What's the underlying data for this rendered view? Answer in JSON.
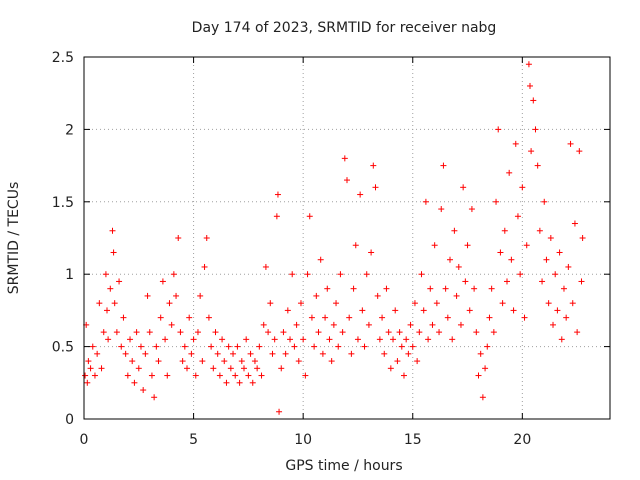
{
  "chart_data": {
    "type": "scatter",
    "title": "Day 174 of 2023, SRMTID for receiver nabg",
    "xlabel": "GPS time / hours",
    "ylabel": "SRMTID / TECUs",
    "xlim": [
      0,
      24
    ],
    "ylim": [
      0,
      2.5
    ],
    "xticks": [
      0,
      5,
      10,
      15,
      20
    ],
    "yticks": [
      0,
      0.5,
      1,
      1.5,
      2,
      2.5
    ],
    "xtick_labels": [
      "0",
      "5",
      "10",
      "15",
      "20"
    ],
    "ytick_labels": [
      "0",
      "0.5",
      "1",
      "1.5",
      "2",
      "2.5"
    ],
    "grid": true,
    "marker": "plus",
    "color": "#ff0000",
    "series": [
      {
        "name": "SRMTID",
        "points": [
          [
            0.05,
            0.3
          ],
          [
            0.1,
            0.65
          ],
          [
            0.15,
            0.25
          ],
          [
            0.2,
            0.4
          ],
          [
            0.3,
            0.35
          ],
          [
            0.4,
            0.5
          ],
          [
            0.5,
            0.3
          ],
          [
            0.6,
            0.45
          ],
          [
            0.7,
            0.8
          ],
          [
            0.8,
            0.35
          ],
          [
            0.9,
            0.6
          ],
          [
            1.0,
            1.0
          ],
          [
            1.05,
            0.75
          ],
          [
            1.1,
            0.55
          ],
          [
            1.2,
            0.9
          ],
          [
            1.3,
            1.3
          ],
          [
            1.35,
            1.15
          ],
          [
            1.4,
            0.8
          ],
          [
            1.5,
            0.6
          ],
          [
            1.6,
            0.95
          ],
          [
            1.7,
            0.5
          ],
          [
            1.8,
            0.7
          ],
          [
            1.9,
            0.45
          ],
          [
            2.0,
            0.3
          ],
          [
            2.1,
            0.55
          ],
          [
            2.2,
            0.4
          ],
          [
            2.3,
            0.25
          ],
          [
            2.4,
            0.6
          ],
          [
            2.5,
            0.35
          ],
          [
            2.6,
            0.5
          ],
          [
            2.7,
            0.2
          ],
          [
            2.8,
            0.45
          ],
          [
            2.9,
            0.85
          ],
          [
            3.0,
            0.6
          ],
          [
            3.1,
            0.3
          ],
          [
            3.2,
            0.15
          ],
          [
            3.3,
            0.5
          ],
          [
            3.4,
            0.4
          ],
          [
            3.5,
            0.7
          ],
          [
            3.6,
            0.95
          ],
          [
            3.7,
            0.55
          ],
          [
            3.8,
            0.3
          ],
          [
            3.9,
            0.8
          ],
          [
            4.0,
            0.65
          ],
          [
            4.1,
            1.0
          ],
          [
            4.2,
            0.85
          ],
          [
            4.3,
            1.25
          ],
          [
            4.4,
            0.6
          ],
          [
            4.5,
            0.4
          ],
          [
            4.6,
            0.5
          ],
          [
            4.7,
            0.35
          ],
          [
            4.8,
            0.7
          ],
          [
            4.9,
            0.45
          ],
          [
            5.0,
            0.55
          ],
          [
            5.1,
            0.3
          ],
          [
            5.2,
            0.6
          ],
          [
            5.3,
            0.85
          ],
          [
            5.4,
            0.4
          ],
          [
            5.5,
            1.05
          ],
          [
            5.6,
            1.25
          ],
          [
            5.7,
            0.7
          ],
          [
            5.8,
            0.5
          ],
          [
            5.9,
            0.35
          ],
          [
            6.0,
            0.6
          ],
          [
            6.1,
            0.45
          ],
          [
            6.2,
            0.3
          ],
          [
            6.3,
            0.55
          ],
          [
            6.4,
            0.4
          ],
          [
            6.5,
            0.25
          ],
          [
            6.6,
            0.5
          ],
          [
            6.7,
            0.35
          ],
          [
            6.8,
            0.45
          ],
          [
            6.9,
            0.3
          ],
          [
            7.0,
            0.5
          ],
          [
            7.1,
            0.25
          ],
          [
            7.2,
            0.4
          ],
          [
            7.3,
            0.35
          ],
          [
            7.4,
            0.55
          ],
          [
            7.5,
            0.3
          ],
          [
            7.6,
            0.45
          ],
          [
            7.7,
            0.25
          ],
          [
            7.8,
            0.4
          ],
          [
            7.9,
            0.35
          ],
          [
            8.0,
            0.5
          ],
          [
            8.1,
            0.3
          ],
          [
            8.2,
            0.65
          ],
          [
            8.3,
            1.05
          ],
          [
            8.4,
            0.6
          ],
          [
            8.5,
            0.8
          ],
          [
            8.6,
            0.45
          ],
          [
            8.7,
            0.55
          ],
          [
            8.8,
            1.4
          ],
          [
            8.85,
            1.55
          ],
          [
            8.9,
            0.05
          ],
          [
            9.0,
            0.35
          ],
          [
            9.1,
            0.6
          ],
          [
            9.2,
            0.45
          ],
          [
            9.3,
            0.75
          ],
          [
            9.4,
            0.55
          ],
          [
            9.5,
            1.0
          ],
          [
            9.6,
            0.5
          ],
          [
            9.7,
            0.65
          ],
          [
            9.8,
            0.4
          ],
          [
            9.9,
            0.8
          ],
          [
            10.0,
            0.55
          ],
          [
            10.1,
            0.3
          ],
          [
            10.2,
            1.0
          ],
          [
            10.3,
            1.4
          ],
          [
            10.4,
            0.7
          ],
          [
            10.5,
            0.5
          ],
          [
            10.6,
            0.85
          ],
          [
            10.7,
            0.6
          ],
          [
            10.8,
            1.1
          ],
          [
            10.9,
            0.45
          ],
          [
            11.0,
            0.7
          ],
          [
            11.1,
            0.9
          ],
          [
            11.2,
            0.55
          ],
          [
            11.3,
            0.4
          ],
          [
            11.4,
            0.65
          ],
          [
            11.5,
            0.8
          ],
          [
            11.6,
            0.5
          ],
          [
            11.7,
            1.0
          ],
          [
            11.8,
            0.6
          ],
          [
            11.9,
            1.8
          ],
          [
            12.0,
            1.65
          ],
          [
            12.1,
            0.7
          ],
          [
            12.2,
            0.45
          ],
          [
            12.3,
            0.9
          ],
          [
            12.4,
            1.2
          ],
          [
            12.5,
            0.55
          ],
          [
            12.6,
            1.55
          ],
          [
            12.7,
            0.75
          ],
          [
            12.8,
            0.5
          ],
          [
            12.9,
            1.0
          ],
          [
            13.0,
            0.65
          ],
          [
            13.1,
            1.15
          ],
          [
            13.2,
            1.75
          ],
          [
            13.3,
            1.6
          ],
          [
            13.4,
            0.85
          ],
          [
            13.5,
            0.55
          ],
          [
            13.6,
            0.7
          ],
          [
            13.7,
            0.45
          ],
          [
            13.8,
            0.9
          ],
          [
            13.9,
            0.6
          ],
          [
            14.0,
            0.35
          ],
          [
            14.1,
            0.55
          ],
          [
            14.2,
            0.75
          ],
          [
            14.3,
            0.4
          ],
          [
            14.4,
            0.6
          ],
          [
            14.5,
            0.5
          ],
          [
            14.6,
            0.3
          ],
          [
            14.7,
            0.55
          ],
          [
            14.8,
            0.45
          ],
          [
            14.9,
            0.65
          ],
          [
            15.0,
            0.5
          ],
          [
            15.1,
            0.8
          ],
          [
            15.2,
            0.4
          ],
          [
            15.3,
            0.6
          ],
          [
            15.4,
            1.0
          ],
          [
            15.5,
            0.75
          ],
          [
            15.6,
            1.5
          ],
          [
            15.7,
            0.55
          ],
          [
            15.8,
            0.9
          ],
          [
            15.9,
            0.65
          ],
          [
            16.0,
            1.2
          ],
          [
            16.1,
            0.8
          ],
          [
            16.2,
            0.6
          ],
          [
            16.3,
            1.45
          ],
          [
            16.4,
            1.75
          ],
          [
            16.5,
            0.9
          ],
          [
            16.6,
            0.7
          ],
          [
            16.7,
            1.1
          ],
          [
            16.8,
            0.55
          ],
          [
            16.9,
            1.3
          ],
          [
            17.0,
            0.85
          ],
          [
            17.1,
            1.05
          ],
          [
            17.2,
            0.65
          ],
          [
            17.3,
            1.6
          ],
          [
            17.4,
            0.95
          ],
          [
            17.5,
            1.2
          ],
          [
            17.6,
            0.75
          ],
          [
            17.7,
            1.45
          ],
          [
            17.8,
            0.9
          ],
          [
            17.9,
            0.6
          ],
          [
            18.0,
            0.3
          ],
          [
            18.1,
            0.45
          ],
          [
            18.2,
            0.15
          ],
          [
            18.3,
            0.35
          ],
          [
            18.4,
            0.5
          ],
          [
            18.5,
            0.7
          ],
          [
            18.6,
            0.9
          ],
          [
            18.7,
            0.6
          ],
          [
            18.8,
            1.5
          ],
          [
            18.9,
            2.0
          ],
          [
            19.0,
            1.15
          ],
          [
            19.1,
            0.8
          ],
          [
            19.2,
            1.3
          ],
          [
            19.3,
            0.95
          ],
          [
            19.4,
            1.7
          ],
          [
            19.5,
            1.1
          ],
          [
            19.6,
            0.75
          ],
          [
            19.7,
            1.9
          ],
          [
            19.8,
            1.4
          ],
          [
            19.9,
            1.0
          ],
          [
            20.0,
            1.6
          ],
          [
            20.1,
            0.7
          ],
          [
            20.2,
            1.2
          ],
          [
            20.3,
            2.45
          ],
          [
            20.35,
            2.3
          ],
          [
            20.4,
            1.85
          ],
          [
            20.5,
            2.2
          ],
          [
            20.6,
            2.0
          ],
          [
            20.7,
            1.75
          ],
          [
            20.8,
            1.3
          ],
          [
            20.9,
            0.95
          ],
          [
            21.0,
            1.5
          ],
          [
            21.1,
            1.1
          ],
          [
            21.2,
            0.8
          ],
          [
            21.3,
            1.25
          ],
          [
            21.4,
            0.65
          ],
          [
            21.5,
            1.0
          ],
          [
            21.6,
            0.75
          ],
          [
            21.7,
            1.15
          ],
          [
            21.8,
            0.55
          ],
          [
            21.9,
            0.9
          ],
          [
            22.0,
            0.7
          ],
          [
            22.1,
            1.05
          ],
          [
            22.2,
            1.9
          ],
          [
            22.3,
            0.8
          ],
          [
            22.4,
            1.35
          ],
          [
            22.5,
            0.6
          ],
          [
            22.6,
            1.85
          ],
          [
            22.7,
            0.95
          ],
          [
            22.75,
            1.25
          ]
        ]
      }
    ]
  }
}
